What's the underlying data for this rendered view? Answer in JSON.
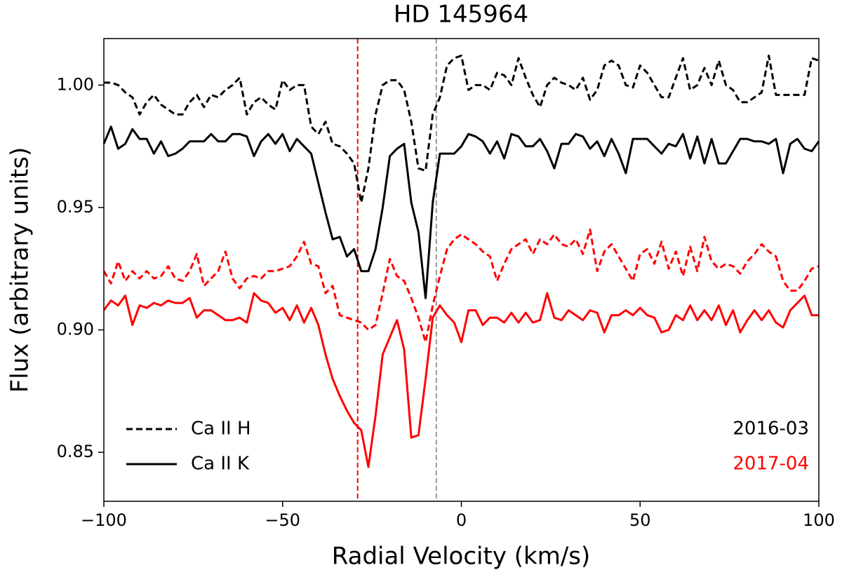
{
  "chart_data": {
    "type": "line",
    "title": "HD 145964",
    "xlabel": "Radial Velocity (km/s)",
    "ylabel": "Flux (arbitrary units)",
    "xlim": [
      -100,
      100
    ],
    "ylim": [
      0.83,
      1.019
    ],
    "xticks": [
      {
        "value": -100,
        "label": "−100"
      },
      {
        "value": -50,
        "label": "−50"
      },
      0,
      50,
      100
    ],
    "yticks": [
      0.85,
      {
        "value": 0.9,
        "label": "0.90"
      },
      0.95,
      {
        "value": 1,
        "label": "1.00"
      }
    ],
    "x": [
      -100,
      -98,
      -96,
      -94,
      -92,
      -90,
      -88,
      -86,
      -84,
      -82,
      -80,
      -78,
      -76,
      -74,
      -72,
      -70,
      -68,
      -66,
      -64,
      -62,
      -60,
      -58,
      -56,
      -54,
      -52,
      -50,
      -48,
      -46,
      -44,
      -42,
      -40,
      -38,
      -36,
      -34,
      -32,
      -30,
      -28,
      -26,
      -24,
      -22,
      -20,
      -18,
      -16,
      -14,
      -12,
      -10,
      -8,
      -6,
      -4,
      -2,
      0,
      2,
      4,
      6,
      8,
      10,
      12,
      14,
      16,
      18,
      20,
      22,
      24,
      26,
      28,
      30,
      32,
      34,
      36,
      38,
      40,
      42,
      44,
      46,
      48,
      50,
      52,
      54,
      56,
      58,
      60,
      62,
      64,
      66,
      68,
      70,
      72,
      74,
      76,
      78,
      80,
      82,
      84,
      86,
      88,
      90,
      92,
      94,
      96,
      98,
      100
    ],
    "series": [
      {
        "color": "#000000",
        "dash": "dashed",
        "values": [
          1.001,
          1.001,
          1.0,
          0.997,
          0.995,
          0.988,
          0.993,
          0.996,
          0.992,
          0.99,
          0.988,
          0.988,
          0.993,
          0.996,
          0.991,
          0.996,
          0.995,
          0.998,
          1.0,
          1.003,
          0.988,
          0.993,
          0.995,
          0.992,
          0.99,
          1.002,
          0.998,
          1.0,
          1.0,
          0.983,
          0.98,
          0.985,
          0.976,
          0.975,
          0.972,
          0.968,
          0.952,
          0.966,
          0.988,
          1.0,
          1.002,
          1.002,
          0.998,
          0.985,
          0.966,
          0.965,
          0.988,
          0.995,
          1.008,
          1.011,
          1.012,
          0.998,
          1.0,
          1.0,
          0.998,
          1.005,
          1.004,
          1.0,
          1.011,
          1.003,
          0.996,
          0.991,
          1.0,
          1.003,
          1.001,
          1.0,
          0.998,
          1.003,
          0.994,
          0.998,
          1.008,
          1.01,
          1.008,
          1.0,
          0.999,
          1.008,
          1.005,
          1.0,
          0.995,
          0.995,
          1.003,
          1.011,
          0.998,
          1.0,
          1.007,
          1.0,
          1.01,
          1.0,
          0.998,
          0.993,
          0.993,
          0.995,
          0.997,
          1.012,
          0.996,
          0.996,
          0.996,
          0.996,
          0.996,
          1.011,
          1.01
        ]
      },
      {
        "color": "#000000",
        "dash": "solid",
        "values": [
          0.976,
          0.983,
          0.974,
          0.976,
          0.982,
          0.978,
          0.978,
          0.972,
          0.977,
          0.971,
          0.972,
          0.974,
          0.977,
          0.977,
          0.977,
          0.98,
          0.977,
          0.977,
          0.98,
          0.98,
          0.979,
          0.971,
          0.977,
          0.98,
          0.976,
          0.98,
          0.973,
          0.978,
          0.975,
          0.972,
          0.96,
          0.948,
          0.937,
          0.938,
          0.93,
          0.933,
          0.924,
          0.924,
          0.933,
          0.95,
          0.971,
          0.974,
          0.976,
          0.952,
          0.94,
          0.913,
          0.952,
          0.972,
          0.972,
          0.972,
          0.975,
          0.98,
          0.979,
          0.977,
          0.972,
          0.977,
          0.97,
          0.98,
          0.979,
          0.975,
          0.975,
          0.978,
          0.973,
          0.966,
          0.976,
          0.976,
          0.98,
          0.979,
          0.974,
          0.977,
          0.971,
          0.978,
          0.972,
          0.964,
          0.978,
          0.978,
          0.978,
          0.975,
          0.972,
          0.976,
          0.975,
          0.98,
          0.97,
          0.979,
          0.968,
          0.978,
          0.968,
          0.968,
          0.973,
          0.978,
          0.978,
          0.977,
          0.977,
          0.976,
          0.978,
          0.964,
          0.976,
          0.978,
          0.974,
          0.973,
          0.977
        ]
      },
      {
        "color": "#ff0000",
        "dash": "dashed",
        "values": [
          0.924,
          0.919,
          0.928,
          0.92,
          0.924,
          0.921,
          0.924,
          0.921,
          0.922,
          0.926,
          0.921,
          0.92,
          0.924,
          0.931,
          0.918,
          0.921,
          0.924,
          0.932,
          0.921,
          0.917,
          0.921,
          0.922,
          0.921,
          0.924,
          0.924,
          0.925,
          0.926,
          0.93,
          0.936,
          0.927,
          0.926,
          0.915,
          0.918,
          0.906,
          0.905,
          0.904,
          0.903,
          0.9,
          0.902,
          0.915,
          0.929,
          0.922,
          0.92,
          0.913,
          0.905,
          0.895,
          0.91,
          0.922,
          0.933,
          0.937,
          0.939,
          0.937,
          0.935,
          0.932,
          0.93,
          0.92,
          0.927,
          0.933,
          0.935,
          0.937,
          0.931,
          0.937,
          0.935,
          0.939,
          0.935,
          0.934,
          0.937,
          0.931,
          0.941,
          0.924,
          0.932,
          0.935,
          0.93,
          0.925,
          0.92,
          0.931,
          0.933,
          0.927,
          0.936,
          0.925,
          0.932,
          0.922,
          0.934,
          0.924,
          0.938,
          0.928,
          0.925,
          0.927,
          0.926,
          0.923,
          0.928,
          0.931,
          0.935,
          0.932,
          0.93,
          0.92,
          0.916,
          0.916,
          0.92,
          0.925,
          0.926
        ]
      },
      {
        "color": "#ff0000",
        "dash": "solid",
        "values": [
          0.908,
          0.912,
          0.91,
          0.914,
          0.902,
          0.91,
          0.909,
          0.911,
          0.91,
          0.912,
          0.911,
          0.911,
          0.913,
          0.905,
          0.908,
          0.908,
          0.906,
          0.904,
          0.904,
          0.905,
          0.903,
          0.915,
          0.912,
          0.911,
          0.907,
          0.909,
          0.904,
          0.91,
          0.903,
          0.909,
          0.902,
          0.89,
          0.88,
          0.873,
          0.867,
          0.862,
          0.859,
          0.844,
          0.865,
          0.89,
          0.897,
          0.904,
          0.892,
          0.856,
          0.857,
          0.88,
          0.905,
          0.91,
          0.906,
          0.903,
          0.895,
          0.908,
          0.908,
          0.902,
          0.905,
          0.905,
          0.903,
          0.907,
          0.903,
          0.907,
          0.903,
          0.904,
          0.915,
          0.905,
          0.904,
          0.908,
          0.906,
          0.904,
          0.908,
          0.907,
          0.899,
          0.906,
          0.906,
          0.908,
          0.906,
          0.909,
          0.906,
          0.905,
          0.899,
          0.9,
          0.906,
          0.904,
          0.91,
          0.904,
          0.908,
          0.904,
          0.91,
          0.902,
          0.908,
          0.899,
          0.904,
          0.908,
          0.904,
          0.908,
          0.903,
          0.901,
          0.908,
          0.911,
          0.914,
          0.906,
          0.906
        ]
      }
    ],
    "vlines": [
      {
        "x": -29,
        "color": "#ff0000"
      },
      {
        "x": -7,
        "color": "#999999"
      }
    ],
    "legend": [
      {
        "label": "Ca II H",
        "dash": "dashed"
      },
      {
        "label": "Ca II K",
        "dash": "solid"
      }
    ],
    "epochs": [
      {
        "label": "2016-03",
        "color": "#000000"
      },
      {
        "label": "2017-04",
        "color": "#ff0000"
      }
    ]
  }
}
